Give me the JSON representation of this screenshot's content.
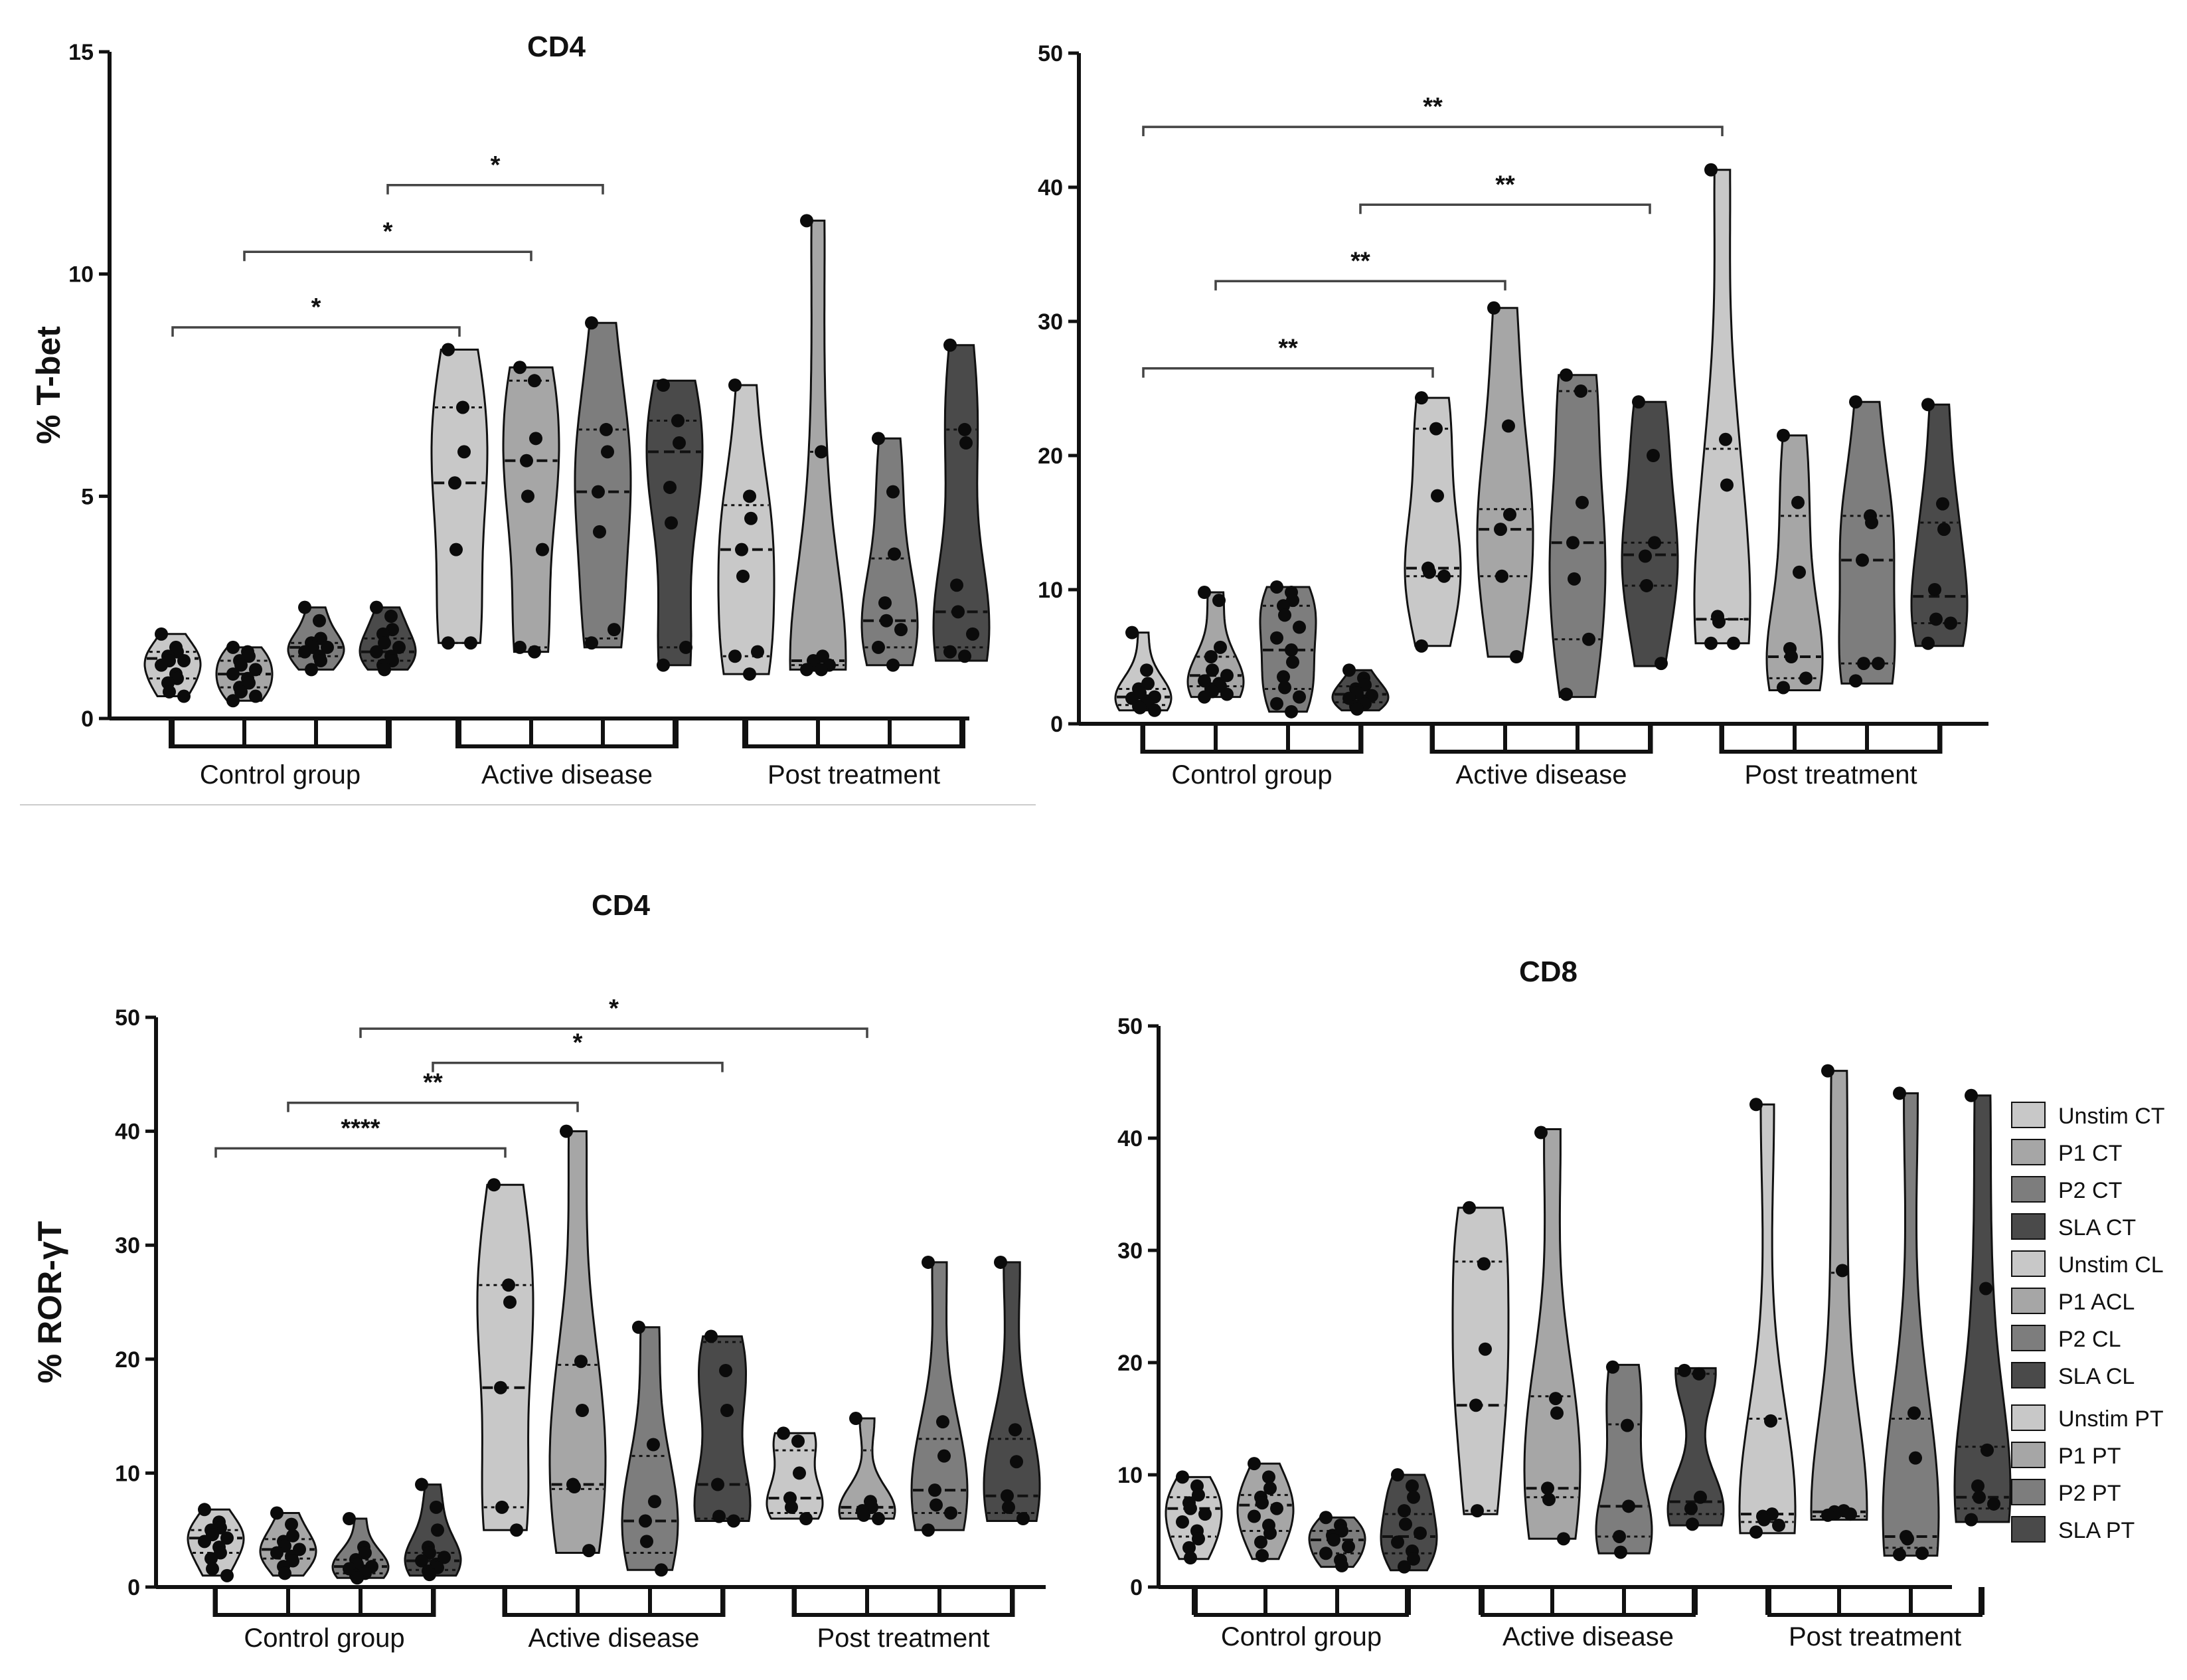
{
  "legend": {
    "items": [
      {
        "label": "Unstim CT",
        "color": "#c8c8c8"
      },
      {
        "label": "P1 CT",
        "color": "#a6a6a6"
      },
      {
        "label": "P2 CT",
        "color": "#7d7d7d"
      },
      {
        "label": "SLA CT",
        "color": "#4a4a4a"
      },
      {
        "label": "Unstim CL",
        "color": "#c8c8c8"
      },
      {
        "label": "P1 ACL",
        "color": "#a6a6a6"
      },
      {
        "label": "P2 CL",
        "color": "#7d7d7d"
      },
      {
        "label": "SLA CL",
        "color": "#4a4a4a"
      },
      {
        "label": "Unstim PT",
        "color": "#c8c8c8"
      },
      {
        "label": "P1 PT",
        "color": "#a6a6a6"
      },
      {
        "label": "P2 PT",
        "color": "#7d7d7d"
      },
      {
        "label": "SLA PT",
        "color": "#4a4a4a"
      }
    ]
  },
  "chart_data": [
    {
      "id": "a",
      "type": "violin",
      "title": "CD4",
      "ylabel": "% T-bet",
      "ylim": [
        0,
        15
      ],
      "yticks": [
        0,
        5,
        10,
        15
      ],
      "groups": [
        "Control group",
        "Active disease",
        "Post treatment"
      ],
      "significance": [
        {
          "from": 0,
          "to": 4,
          "label": "*",
          "y": 8.8
        },
        {
          "from": 1,
          "to": 5,
          "label": "*",
          "y": 10.5
        },
        {
          "from": 3,
          "to": 6,
          "label": "*",
          "y": 12.0
        }
      ],
      "series": [
        {
          "name": "Unstim CT",
          "min": 0.5,
          "max": 1.9,
          "q1": 0.9,
          "median": 1.35,
          "q3": 1.5,
          "points": [
            1.9,
            1.6,
            1.5,
            1.4,
            1.3,
            1.3,
            1.2,
            1.0,
            0.9,
            0.8,
            0.6,
            0.5
          ]
        },
        {
          "name": "P1 CT",
          "min": 0.4,
          "max": 1.6,
          "q1": 0.7,
          "median": 1.0,
          "q3": 1.3,
          "points": [
            1.6,
            1.5,
            1.4,
            1.3,
            1.2,
            1.1,
            1.0,
            0.9,
            0.8,
            0.7,
            0.6,
            0.5,
            0.4
          ]
        },
        {
          "name": "P2 CT",
          "min": 1.1,
          "max": 2.5,
          "q1": 1.4,
          "median": 1.6,
          "q3": 1.7,
          "points": [
            2.5,
            2.2,
            1.8,
            1.7,
            1.6,
            1.6,
            1.5,
            1.4,
            1.3,
            1.1
          ]
        },
        {
          "name": "SLA CT",
          "min": 1.1,
          "max": 2.5,
          "q1": 1.3,
          "median": 1.5,
          "q3": 1.8,
          "points": [
            2.5,
            2.3,
            2.0,
            1.9,
            1.7,
            1.6,
            1.5,
            1.4,
            1.3,
            1.2,
            1.1
          ]
        },
        {
          "name": "Unstim CL",
          "min": 1.7,
          "max": 8.3,
          "q1": 1.7,
          "median": 5.3,
          "q3": 7.0,
          "points": [
            8.3,
            7.0,
            6.0,
            5.3,
            3.8,
            1.7,
            1.7
          ]
        },
        {
          "name": "P1 ACL",
          "min": 1.5,
          "max": 7.9,
          "q1": 1.6,
          "median": 5.8,
          "q3": 7.6,
          "points": [
            7.9,
            7.6,
            6.3,
            5.8,
            5.0,
            3.8,
            1.6,
            1.5
          ]
        },
        {
          "name": "P2 CL",
          "min": 1.6,
          "max": 8.9,
          "q1": 1.8,
          "median": 5.1,
          "q3": 6.5,
          "points": [
            8.9,
            6.5,
            6.0,
            5.1,
            4.2,
            2.0,
            1.7
          ]
        },
        {
          "name": "SLA CL",
          "min": 1.2,
          "max": 7.6,
          "q1": 1.6,
          "median": 6.0,
          "q3": 6.7,
          "points": [
            7.5,
            6.7,
            6.2,
            5.2,
            4.4,
            1.6,
            1.2
          ]
        },
        {
          "name": "Unstim PT",
          "min": 1.0,
          "max": 7.5,
          "q1": 1.4,
          "median": 3.8,
          "q3": 4.8,
          "points": [
            7.5,
            5.0,
            4.5,
            3.8,
            3.2,
            1.5,
            1.4,
            1.0
          ]
        },
        {
          "name": "P1 PT",
          "min": 1.1,
          "max": 11.2,
          "q1": 1.2,
          "median": 1.3,
          "q3": 6.0,
          "points": [
            11.2,
            6.0,
            1.4,
            1.3,
            1.2,
            1.2,
            1.1,
            1.1
          ]
        },
        {
          "name": "P2 PT",
          "min": 1.2,
          "max": 6.3,
          "q1": 1.6,
          "median": 2.2,
          "q3": 3.6,
          "points": [
            6.3,
            5.1,
            3.7,
            2.6,
            2.2,
            2.0,
            1.6,
            1.2
          ]
        },
        {
          "name": "SLA PT",
          "min": 1.3,
          "max": 8.4,
          "q1": 1.6,
          "median": 2.4,
          "q3": 6.5,
          "points": [
            8.4,
            6.5,
            6.2,
            3.0,
            2.4,
            1.9,
            1.5,
            1.4
          ]
        }
      ]
    },
    {
      "id": "b",
      "type": "violin",
      "title": "",
      "ylabel": "",
      "ylim": [
        0,
        50
      ],
      "yticks": [
        0,
        10,
        20,
        30,
        40,
        50
      ],
      "groups": [
        "Control group",
        "Active disease",
        "Post treatment"
      ],
      "significance": [
        {
          "from": 0,
          "to": 4,
          "label": "**",
          "y": 26.5
        },
        {
          "from": 1,
          "to": 5,
          "label": "**",
          "y": 33.0
        },
        {
          "from": 3,
          "to": 7,
          "label": "**",
          "y": 38.7
        },
        {
          "from": 0,
          "to": 8,
          "label": "**",
          "y": 44.5
        }
      ],
      "series": [
        {
          "name": "Unstim CT",
          "min": 1.0,
          "max": 6.8,
          "q1": 1.4,
          "median": 2.0,
          "q3": 2.6,
          "points": [
            6.8,
            4.0,
            3.0,
            2.6,
            2.3,
            2.0,
            1.9,
            1.7,
            1.5,
            1.3,
            1.2,
            1.0
          ]
        },
        {
          "name": "P1 CT",
          "min": 2.0,
          "max": 9.8,
          "q1": 2.8,
          "median": 3.6,
          "q3": 5.0,
          "points": [
            9.8,
            9.2,
            5.7,
            5.0,
            4.0,
            3.6,
            3.2,
            3.0,
            2.8,
            2.6,
            2.4,
            2.2,
            2.0
          ]
        },
        {
          "name": "P2 CT",
          "min": 0.9,
          "max": 10.2,
          "q1": 2.6,
          "median": 5.5,
          "q3": 8.8,
          "points": [
            10.2,
            9.8,
            9.2,
            8.8,
            8.1,
            7.2,
            6.4,
            5.5,
            4.6,
            3.5,
            2.7,
            2.0,
            1.5,
            0.9
          ]
        },
        {
          "name": "SLA CT",
          "min": 1.0,
          "max": 4.0,
          "q1": 1.6,
          "median": 2.2,
          "q3": 2.8,
          "points": [
            4.0,
            3.4,
            2.9,
            2.6,
            2.3,
            2.1,
            1.9,
            1.7,
            1.5,
            1.3,
            1.1
          ]
        },
        {
          "name": "Unstim CL",
          "min": 5.8,
          "max": 24.3,
          "q1": 11.0,
          "median": 11.6,
          "q3": 22.0,
          "points": [
            24.3,
            22.0,
            17.0,
            11.6,
            11.3,
            11.0,
            5.8
          ]
        },
        {
          "name": "P1 ACL",
          "min": 5.0,
          "max": 31.0,
          "q1": 11.0,
          "median": 14.5,
          "q3": 16.0,
          "points": [
            31.0,
            22.2,
            15.6,
            14.5,
            11.0,
            5.0
          ]
        },
        {
          "name": "P2 CL",
          "min": 2.0,
          "max": 26.0,
          "q1": 6.3,
          "median": 13.5,
          "q3": 24.8,
          "points": [
            26.0,
            24.8,
            16.5,
            13.5,
            10.8,
            6.3,
            2.2
          ]
        },
        {
          "name": "SLA CL",
          "min": 4.3,
          "max": 24.0,
          "q1": 10.3,
          "median": 12.6,
          "q3": 13.5,
          "points": [
            24.0,
            20.0,
            13.5,
            12.5,
            10.3,
            4.5
          ]
        },
        {
          "name": "Unstim PT",
          "min": 6.0,
          "max": 41.3,
          "q1": 7.8,
          "median": 7.8,
          "q3": 20.5,
          "points": [
            41.3,
            21.2,
            17.8,
            8.0,
            7.6,
            6.0,
            6.0
          ]
        },
        {
          "name": "P1 PT",
          "min": 2.5,
          "max": 21.5,
          "q1": 3.4,
          "median": 5.0,
          "q3": 15.5,
          "points": [
            21.5,
            16.5,
            11.3,
            5.6,
            5.0,
            3.4,
            2.7
          ]
        },
        {
          "name": "P2 PT",
          "min": 3.0,
          "max": 24.0,
          "q1": 4.5,
          "median": 12.2,
          "q3": 15.5,
          "points": [
            24.0,
            15.5,
            15.0,
            12.2,
            4.5,
            4.5,
            3.2
          ]
        },
        {
          "name": "SLA PT",
          "min": 5.8,
          "max": 23.8,
          "q1": 7.5,
          "median": 9.5,
          "q3": 15.0,
          "points": [
            23.8,
            16.4,
            14.5,
            10.0,
            7.8,
            7.5,
            6.0
          ]
        }
      ]
    },
    {
      "id": "c",
      "type": "violin",
      "title": "CD4",
      "ylabel": "% ROR-γT",
      "ylim": [
        0,
        50
      ],
      "yticks": [
        0,
        10,
        20,
        30,
        40,
        50
      ],
      "groups": [
        "Control group",
        "Active disease",
        "Post treatment"
      ],
      "significance": [
        {
          "from": 0,
          "to": 4,
          "label": "****",
          "y": 38.5
        },
        {
          "from": 1,
          "to": 5,
          "label": "**",
          "y": 42.5
        },
        {
          "from": 3,
          "to": 7,
          "label": "*",
          "y": 46.0
        },
        {
          "from": 2,
          "to": 9,
          "label": "*",
          "y": 49.0
        }
      ],
      "series": [
        {
          "name": "Unstim CT",
          "min": 1.0,
          "max": 6.8,
          "q1": 3.0,
          "median": 4.3,
          "q3": 5.0,
          "points": [
            6.8,
            5.7,
            5.2,
            5.0,
            4.6,
            4.3,
            4.0,
            3.5,
            3.0,
            2.5,
            1.6,
            1.0
          ]
        },
        {
          "name": "P1 CT",
          "min": 1.0,
          "max": 6.5,
          "q1": 2.5,
          "median": 3.3,
          "q3": 4.2,
          "points": [
            6.5,
            5.5,
            4.5,
            4.0,
            3.6,
            3.3,
            3.0,
            2.7,
            2.3,
            1.8,
            1.2
          ]
        },
        {
          "name": "P2 CT",
          "min": 0.8,
          "max": 6.0,
          "q1": 1.2,
          "median": 1.8,
          "q3": 2.4,
          "points": [
            6.0,
            3.5,
            3.0,
            2.4,
            2.0,
            1.8,
            1.6,
            1.4,
            1.2,
            1.0,
            0.8
          ]
        },
        {
          "name": "SLA CT",
          "min": 1.0,
          "max": 9.0,
          "q1": 1.5,
          "median": 2.3,
          "q3": 3.0,
          "points": [
            9.0,
            7.0,
            5.0,
            3.5,
            3.0,
            2.6,
            2.3,
            2.0,
            1.7,
            1.4,
            1.1
          ]
        },
        {
          "name": "Unstim CL",
          "min": 5.0,
          "max": 35.3,
          "q1": 7.0,
          "median": 17.5,
          "q3": 26.5,
          "points": [
            35.3,
            26.5,
            25.0,
            17.5,
            7.0,
            5.0
          ]
        },
        {
          "name": "P1 ACL",
          "min": 3.0,
          "max": 40.0,
          "q1": 8.6,
          "median": 9.0,
          "q3": 19.5,
          "points": [
            40.0,
            19.8,
            15.5,
            9.0,
            8.8,
            3.2
          ]
        },
        {
          "name": "P2 CL",
          "min": 1.5,
          "max": 22.8,
          "q1": 3.0,
          "median": 5.8,
          "q3": 11.5,
          "points": [
            22.8,
            12.5,
            7.5,
            5.8,
            4.0,
            1.5
          ]
        },
        {
          "name": "SLA CL",
          "min": 5.8,
          "max": 22.0,
          "q1": 6.0,
          "median": 9.0,
          "q3": 21.5,
          "points": [
            22.0,
            19.0,
            15.5,
            9.0,
            6.2,
            5.8
          ]
        },
        {
          "name": "Unstim PT",
          "min": 6.0,
          "max": 13.5,
          "q1": 6.5,
          "median": 7.8,
          "q3": 12.0,
          "points": [
            13.5,
            12.8,
            10.0,
            7.8,
            7.0,
            6.0
          ]
        },
        {
          "name": "P1 PT",
          "min": 6.0,
          "max": 14.8,
          "q1": 6.5,
          "median": 7.0,
          "q3": 12.0,
          "points": [
            14.8,
            7.5,
            7.0,
            6.7,
            6.3,
            6.0
          ]
        },
        {
          "name": "P2 PT",
          "min": 5.0,
          "max": 28.5,
          "q1": 6.5,
          "median": 8.5,
          "q3": 13.0,
          "points": [
            28.5,
            14.5,
            11.5,
            8.5,
            7.2,
            6.5,
            5.0
          ]
        },
        {
          "name": "SLA PT",
          "min": 5.8,
          "max": 28.5,
          "q1": 6.5,
          "median": 8.0,
          "q3": 13.0,
          "points": [
            28.5,
            13.8,
            11.0,
            8.0,
            7.0,
            6.0
          ]
        }
      ]
    },
    {
      "id": "d",
      "type": "violin",
      "title": "CD8",
      "ylabel": "",
      "ylim": [
        0,
        50
      ],
      "yticks": [
        0,
        10,
        20,
        30,
        40,
        50
      ],
      "groups": [
        "Control group",
        "Active disease",
        "Post treatment"
      ],
      "significance": [],
      "series": [
        {
          "name": "Unstim CT",
          "min": 2.5,
          "max": 9.8,
          "q1": 4.5,
          "median": 7.0,
          "q3": 8.0,
          "points": [
            9.8,
            9.0,
            8.2,
            7.5,
            7.0,
            6.5,
            5.8,
            5.0,
            4.3,
            3.5,
            2.6
          ]
        },
        {
          "name": "P1 CT",
          "min": 2.5,
          "max": 11.0,
          "q1": 5.0,
          "median": 7.3,
          "q3": 8.2,
          "points": [
            11.0,
            9.8,
            8.8,
            8.0,
            7.5,
            7.0,
            6.3,
            5.5,
            4.8,
            4.0,
            2.8
          ]
        },
        {
          "name": "P2 CT",
          "min": 1.8,
          "max": 6.2,
          "q1": 3.0,
          "median": 4.2,
          "q3": 5.0,
          "points": [
            6.2,
            5.5,
            5.0,
            4.6,
            4.2,
            3.6,
            3.0,
            2.4,
            1.9
          ]
        },
        {
          "name": "SLA CT",
          "min": 1.5,
          "max": 10.0,
          "q1": 3.0,
          "median": 4.5,
          "q3": 6.5,
          "points": [
            10.0,
            9.0,
            8.0,
            6.8,
            5.6,
            4.8,
            4.0,
            3.2,
            2.5,
            1.8
          ]
        },
        {
          "name": "Unstim CL",
          "min": 6.5,
          "max": 33.8,
          "q1": 6.8,
          "median": 16.2,
          "q3": 29.0,
          "points": [
            33.8,
            28.8,
            21.2,
            16.2,
            6.8
          ]
        },
        {
          "name": "P1 ACL",
          "min": 4.3,
          "max": 40.8,
          "q1": 8.0,
          "median": 8.8,
          "q3": 17.0,
          "points": [
            40.5,
            16.8,
            15.5,
            8.8,
            7.8,
            4.3
          ]
        },
        {
          "name": "P2 CL",
          "min": 3.0,
          "max": 19.8,
          "q1": 4.5,
          "median": 7.2,
          "q3": 14.5,
          "points": [
            19.6,
            14.4,
            7.2,
            4.5,
            3.1
          ]
        },
        {
          "name": "SLA CL",
          "min": 5.5,
          "max": 19.5,
          "q1": 6.5,
          "median": 7.6,
          "q3": 19.0,
          "points": [
            19.3,
            19.0,
            8.0,
            7.0,
            5.6
          ]
        },
        {
          "name": "Unstim PT",
          "min": 4.8,
          "max": 43.0,
          "q1": 5.8,
          "median": 6.5,
          "q3": 15.0,
          "points": [
            43.0,
            14.8,
            6.5,
            6.3,
            6.0,
            5.5,
            4.9
          ]
        },
        {
          "name": "P1 PT",
          "min": 6.0,
          "max": 46.0,
          "q1": 6.3,
          "median": 6.7,
          "q3": 28.0,
          "points": [
            46.0,
            28.2,
            6.8,
            6.7,
            6.6,
            6.5,
            6.4
          ]
        },
        {
          "name": "P2 PT",
          "min": 2.8,
          "max": 44.0,
          "q1": 3.5,
          "median": 4.5,
          "q3": 15.0,
          "points": [
            44.0,
            15.5,
            11.5,
            4.5,
            4.3,
            3.0,
            2.9
          ]
        },
        {
          "name": "SLA PT",
          "min": 5.8,
          "max": 43.8,
          "q1": 7.0,
          "median": 8.0,
          "q3": 12.5,
          "points": [
            43.8,
            26.6,
            12.2,
            9.0,
            8.0,
            7.4,
            6.0
          ]
        }
      ]
    }
  ]
}
